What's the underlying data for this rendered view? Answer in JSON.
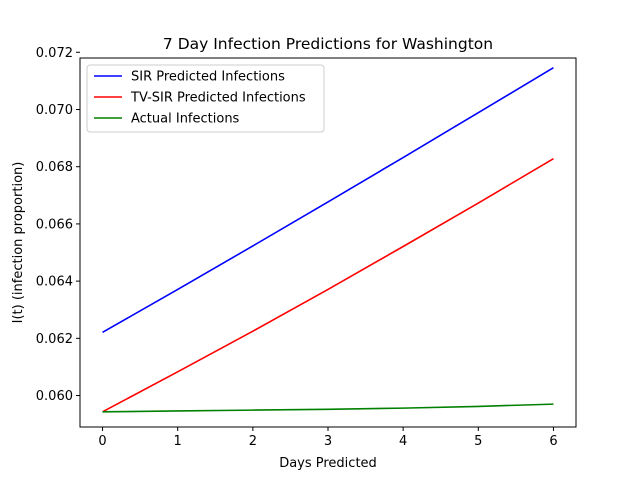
{
  "chart_data": {
    "type": "line",
    "title": "7 Day Infection Predictions for Washington",
    "xlabel": "Days Predicted",
    "ylabel": "I(t) (infection proportion)",
    "xlim": [
      -0.3,
      6.3
    ],
    "ylim": [
      0.0589,
      0.0718
    ],
    "x_ticks": [
      0,
      1,
      2,
      3,
      4,
      5,
      6
    ],
    "x_tick_labels": [
      "0",
      "1",
      "2",
      "3",
      "4",
      "5",
      "6"
    ],
    "y_ticks": [
      0.06,
      0.062,
      0.064,
      0.066,
      0.068,
      0.07,
      0.072
    ],
    "y_tick_labels": [
      "0.060",
      "0.062",
      "0.064",
      "0.066",
      "0.068",
      "0.070",
      "0.072"
    ],
    "grid": false,
    "legend_position": "upper-left",
    "x": [
      0,
      1,
      2,
      3,
      4,
      5,
      6
    ],
    "series": [
      {
        "name": "SIR Predicted Infections",
        "color": "#0000ff",
        "values": [
          0.06221,
          0.06371,
          0.06523,
          0.06677,
          0.06832,
          0.06989,
          0.07146
        ]
      },
      {
        "name": "TV-SIR Predicted Infections",
        "color": "#ff0000",
        "values": [
          0.05943,
          0.06083,
          0.06225,
          0.06371,
          0.06521,
          0.06673,
          0.06828
        ]
      },
      {
        "name": "Actual Infections",
        "color": "#008000",
        "values": [
          0.05943,
          0.05946,
          0.05949,
          0.05952,
          0.05956,
          0.05962,
          0.0597
        ]
      }
    ]
  }
}
